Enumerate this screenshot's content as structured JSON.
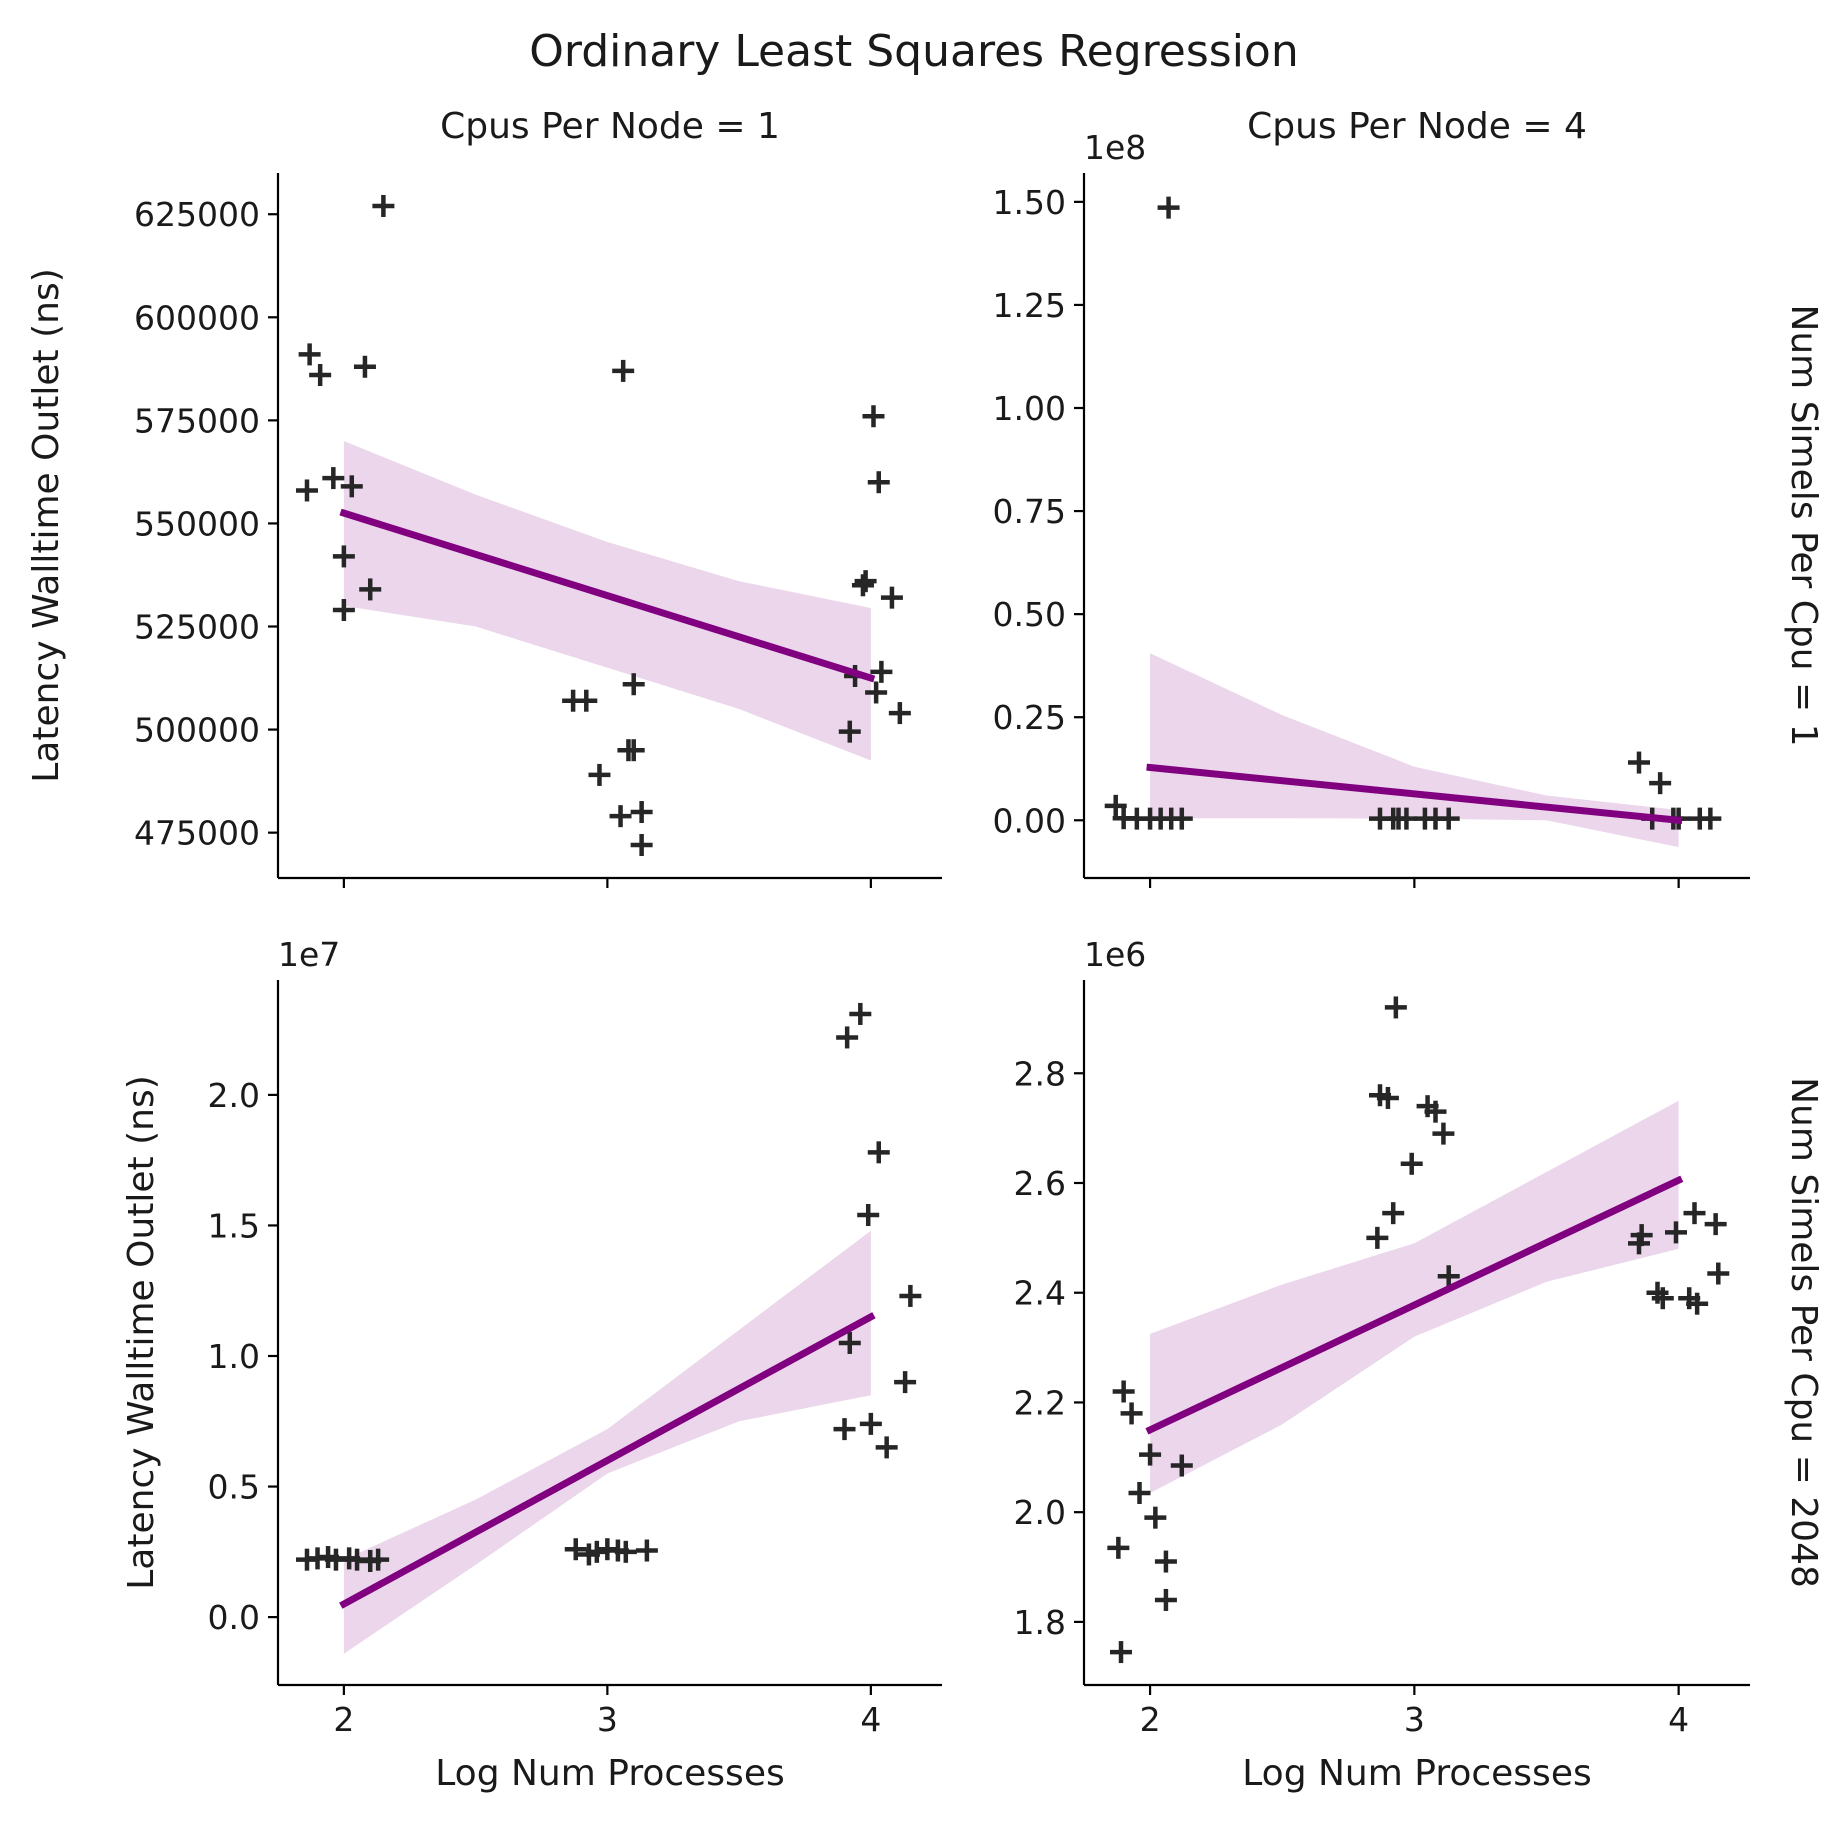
{
  "title": "Ordinary Least Squares Regression",
  "colors": {
    "fit": "#800080",
    "ci": "#ebd6eb",
    "marker": "#262626"
  },
  "chart_data": [
    {
      "id": "top-left",
      "type": "scatter",
      "col_title": "Cpus Per Node = 1",
      "row_title": "",
      "offset_label": "",
      "xlabel": "",
      "ylabel": "Latency Walltime Outlet (ns)",
      "xlim": [
        1.75,
        4.27
      ],
      "xticks": [
        2,
        3,
        4
      ],
      "xtick_labels": [
        "",
        "",
        ""
      ],
      "ylim": [
        464000,
        635000
      ],
      "yticks": [
        475000,
        500000,
        525000,
        550000,
        575000,
        600000,
        625000
      ],
      "ytick_labels": [
        "475000",
        "500000",
        "525000",
        "550000",
        "575000",
        "600000",
        "625000"
      ],
      "points": [
        [
          1.86,
          558000
        ],
        [
          1.87,
          591000
        ],
        [
          1.91,
          586000
        ],
        [
          1.96,
          561000
        ],
        [
          2.03,
          559000
        ],
        [
          2.0,
          542000
        ],
        [
          2.0,
          529000
        ],
        [
          2.08,
          588000
        ],
        [
          2.1,
          534000
        ],
        [
          2.15,
          627000
        ],
        [
          2.87,
          507000
        ],
        [
          2.92,
          507000
        ],
        [
          2.97,
          489000
        ],
        [
          3.05,
          479000
        ],
        [
          3.06,
          587000
        ],
        [
          3.08,
          495000
        ],
        [
          3.1,
          495000
        ],
        [
          3.1,
          511000
        ],
        [
          3.13,
          480000
        ],
        [
          3.13,
          472000
        ],
        [
          3.92,
          499500
        ],
        [
          3.94,
          513000
        ],
        [
          3.97,
          535000
        ],
        [
          3.98,
          536000
        ],
        [
          4.01,
          576000
        ],
        [
          4.02,
          509000
        ],
        [
          4.03,
          560000
        ],
        [
          4.04,
          514000
        ],
        [
          4.08,
          532000
        ],
        [
          4.11,
          504000
        ]
      ],
      "fit": {
        "x": [
          2,
          4
        ],
        "y": [
          552500,
          512500
        ]
      },
      "ci": {
        "x": [
          2.0,
          2.5,
          3.0,
          3.5,
          4.0
        ],
        "lower": [
          530000,
          525000,
          515000,
          505000,
          492500
        ],
        "upper": [
          570000,
          557000,
          545500,
          536000,
          529500
        ]
      }
    },
    {
      "id": "top-right",
      "type": "scatter",
      "col_title": "Cpus Per Node = 4",
      "row_title": "Num Simels Per Cpu = 1",
      "offset_label": "1e8",
      "xlabel": "",
      "ylabel": "",
      "xlim": [
        1.75,
        4.27
      ],
      "xticks": [
        2,
        3,
        4
      ],
      "xtick_labels": [
        "",
        "",
        ""
      ],
      "ylim": [
        -0.14,
        1.57
      ],
      "yticks": [
        0.0,
        0.25,
        0.5,
        0.75,
        1.0,
        1.25,
        1.5
      ],
      "ytick_labels": [
        "0.00",
        "0.25",
        "0.50",
        "0.75",
        "1.00",
        "1.25",
        "1.50"
      ],
      "points": [
        [
          1.87,
          0.035
        ],
        [
          1.9,
          0.005
        ],
        [
          1.95,
          0.004
        ],
        [
          2.0,
          0.004
        ],
        [
          2.04,
          0.004
        ],
        [
          2.07,
          1.486
        ],
        [
          2.08,
          0.004
        ],
        [
          2.12,
          0.004
        ],
        [
          2.87,
          0.004
        ],
        [
          2.92,
          0.004
        ],
        [
          2.94,
          0.004
        ],
        [
          2.97,
          0.004
        ],
        [
          3.04,
          0.004
        ],
        [
          3.08,
          0.004
        ],
        [
          3.13,
          0.004
        ],
        [
          3.85,
          0.14
        ],
        [
          3.9,
          0.004
        ],
        [
          3.93,
          0.09
        ],
        [
          3.98,
          0.004
        ],
        [
          4.0,
          0.004
        ],
        [
          4.08,
          0.004
        ],
        [
          4.12,
          0.004
        ]
      ],
      "fit": {
        "x": [
          2,
          4
        ],
        "y": [
          0.128,
          0.0
        ]
      },
      "ci": {
        "x": [
          2.0,
          2.5,
          3.0,
          3.5,
          4.0
        ],
        "lower": [
          0.005,
          0.005,
          0.004,
          0.0,
          -0.065
        ],
        "upper": [
          0.405,
          0.255,
          0.13,
          0.06,
          0.025
        ]
      }
    },
    {
      "id": "bottom-left",
      "type": "scatter",
      "col_title": "",
      "row_title": "",
      "offset_label": "1e7",
      "xlabel": "Log Num Processes",
      "ylabel": "Latency Walltime Outlet (ns)",
      "xlim": [
        1.75,
        4.27
      ],
      "xticks": [
        2,
        3,
        4
      ],
      "xtick_labels": [
        "2",
        "3",
        "4"
      ],
      "ylim": [
        -0.26,
        2.44
      ],
      "yticks": [
        0.0,
        0.5,
        1.0,
        1.5,
        2.0
      ],
      "ytick_labels": [
        "0.0",
        "0.5",
        "1.0",
        "1.5",
        "2.0"
      ],
      "points": [
        [
          1.86,
          0.22
        ],
        [
          1.9,
          0.225
        ],
        [
          1.94,
          0.23
        ],
        [
          1.97,
          0.22
        ],
        [
          2.02,
          0.225
        ],
        [
          2.05,
          0.22
        ],
        [
          2.1,
          0.215
        ],
        [
          2.13,
          0.22
        ],
        [
          2.88,
          0.26
        ],
        [
          2.93,
          0.24
        ],
        [
          2.96,
          0.25
        ],
        [
          3.0,
          0.26
        ],
        [
          3.04,
          0.255
        ],
        [
          3.07,
          0.25
        ],
        [
          3.15,
          0.255
        ],
        [
          3.9,
          0.72
        ],
        [
          3.92,
          1.05
        ],
        [
          3.91,
          2.22
        ],
        [
          3.96,
          2.31
        ],
        [
          3.99,
          1.54
        ],
        [
          4.0,
          0.74
        ],
        [
          4.03,
          1.78
        ],
        [
          4.06,
          0.65
        ],
        [
          4.13,
          0.9
        ],
        [
          4.15,
          1.23
        ]
      ],
      "fit": {
        "x": [
          2,
          4
        ],
        "y": [
          0.05,
          1.15
        ]
      },
      "ci": {
        "x": [
          2.0,
          2.5,
          3.0,
          3.5,
          4.0
        ],
        "lower": [
          -0.14,
          0.2,
          0.55,
          0.75,
          0.85
        ],
        "upper": [
          0.22,
          0.45,
          0.72,
          1.1,
          1.48
        ]
      }
    },
    {
      "id": "bottom-right",
      "type": "scatter",
      "col_title": "",
      "row_title": "Num Simels Per Cpu = 2048",
      "offset_label": "1e6",
      "xlabel": "Log Num Processes",
      "ylabel": "",
      "xlim": [
        1.75,
        4.27
      ],
      "xticks": [
        2,
        3,
        4
      ],
      "xtick_labels": [
        "2",
        "3",
        "4"
      ],
      "ylim": [
        1.685,
        2.97
      ],
      "yticks": [
        1.8,
        2.0,
        2.2,
        2.4,
        2.6,
        2.8
      ],
      "ytick_labels": [
        "1.8",
        "2.0",
        "2.2",
        "2.4",
        "2.6",
        "2.8"
      ],
      "points": [
        [
          1.88,
          1.935
        ],
        [
          1.89,
          1.745
        ],
        [
          1.9,
          2.22
        ],
        [
          1.93,
          2.18
        ],
        [
          1.96,
          2.035
        ],
        [
          2.0,
          2.105
        ],
        [
          2.02,
          1.99
        ],
        [
          2.06,
          1.91
        ],
        [
          2.06,
          1.84
        ],
        [
          2.12,
          2.085
        ],
        [
          2.86,
          2.5
        ],
        [
          2.87,
          2.76
        ],
        [
          2.9,
          2.755
        ],
        [
          2.92,
          2.545
        ],
        [
          2.93,
          2.92
        ],
        [
          2.99,
          2.635
        ],
        [
          3.05,
          2.74
        ],
        [
          3.08,
          2.73
        ],
        [
          3.11,
          2.69
        ],
        [
          3.13,
          2.43
        ],
        [
          3.85,
          2.49
        ],
        [
          3.86,
          2.505
        ],
        [
          3.92,
          2.4
        ],
        [
          3.94,
          2.39
        ],
        [
          3.99,
          2.51
        ],
        [
          4.04,
          2.39
        ],
        [
          4.06,
          2.545
        ],
        [
          4.07,
          2.38
        ],
        [
          4.14,
          2.525
        ],
        [
          4.15,
          2.435
        ]
      ],
      "fit": {
        "x": [
          2,
          4
        ],
        "y": [
          2.15,
          2.605
        ]
      },
      "ci": {
        "x": [
          2.0,
          2.5,
          3.0,
          3.5,
          4.0
        ],
        "lower": [
          2.035,
          2.16,
          2.32,
          2.42,
          2.48
        ],
        "upper": [
          2.325,
          2.415,
          2.49,
          2.62,
          2.75
        ]
      }
    }
  ]
}
